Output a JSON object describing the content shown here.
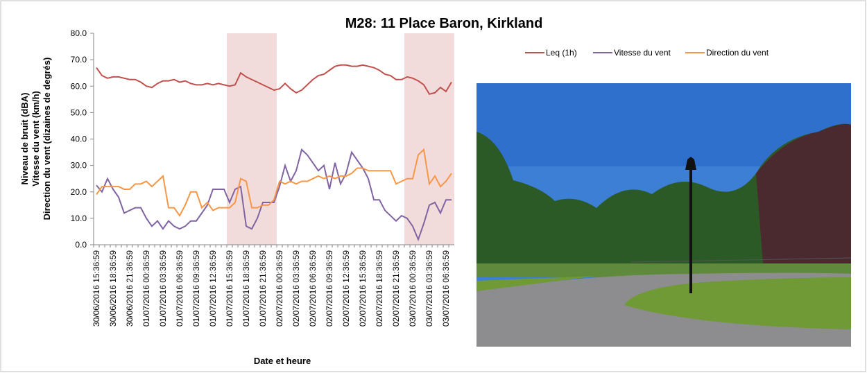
{
  "chart_data": {
    "type": "line",
    "title": "M28: 11 Place Baron, Kirkland",
    "xlabel": "Date et heure",
    "ylabel": [
      "Niveau de bruit (dBA)",
      "Vitesse du vent (km/h)",
      "Direction du vent (dizaines de degrés)"
    ],
    "categories": [
      "30/06/2016 15:36:59",
      null,
      null,
      "30/06/2016 18:36:59",
      null,
      null,
      "30/06/2016 21:36:59",
      null,
      null,
      "01/07/2016 00:36:59",
      null,
      null,
      "01/07/2016 03:36:59",
      null,
      null,
      "01/07/2016 06:36:59",
      null,
      null,
      "01/07/2016 09:36:59",
      null,
      null,
      "01/07/2016 12:36:59",
      null,
      null,
      "01/07/2016 15:36:59",
      null,
      null,
      "01/07/2016 18:36:59",
      null,
      null,
      "01/07/2016 21:36:59",
      null,
      null,
      "02/07/2016 00:36:59",
      null,
      null,
      "02/07/2016 03:36:59",
      null,
      null,
      "02/07/2016 06:36:59",
      null,
      null,
      "02/07/2016 09:36:59",
      null,
      null,
      "02/07/2016 12:36:59",
      null,
      null,
      "02/07/2016 15:36:59",
      null,
      null,
      "02/07/2016 18:36:59",
      null,
      null,
      "02/07/2016 21:36:59",
      null,
      null,
      "03/07/2016 00:36:59",
      null,
      null,
      "03/07/2016 03:36:59",
      null,
      null,
      "03/07/2016 06:36:59",
      null
    ],
    "series": [
      {
        "name": "Leq (1h)",
        "color": "#c0504d",
        "values": [
          67,
          64,
          63,
          63.5,
          63.5,
          63,
          62.5,
          62.5,
          61.5,
          60,
          59.5,
          61,
          62,
          62,
          62.5,
          61.5,
          62,
          61,
          60.5,
          60.5,
          61,
          60.5,
          61,
          60.5,
          60,
          60.5,
          65,
          63.5,
          62.5,
          61.5,
          60.5,
          59.5,
          58.5,
          59,
          61,
          59,
          57.5,
          58.5,
          60.5,
          62.5,
          64,
          64.5,
          66,
          67.5,
          68,
          68,
          67.5,
          67.5,
          68,
          67.5,
          67,
          66,
          64.5,
          64,
          62.5,
          62.5,
          63.5,
          63,
          62,
          60.5,
          57,
          57.5,
          59.5,
          58,
          61.5
        ]
      },
      {
        "name": "Vitesse du vent",
        "color": "#8064a2",
        "values": [
          22.5,
          20,
          25,
          21,
          18,
          12,
          13,
          14,
          14,
          10,
          7,
          9,
          6,
          9,
          7,
          6,
          7,
          9,
          9,
          12,
          15,
          21,
          21,
          21,
          16,
          21,
          22,
          7,
          6,
          10,
          16,
          16,
          16,
          22,
          30,
          24,
          28,
          36,
          34,
          31,
          28,
          30,
          21,
          31,
          23,
          27,
          35,
          32,
          29,
          25,
          17,
          17,
          13,
          11,
          9,
          11,
          10,
          7,
          2,
          8,
          15,
          16,
          12,
          17,
          17
        ]
      },
      {
        "name": "Direction du vent",
        "color": "#f79646",
        "values": [
          19,
          22,
          22,
          22,
          22,
          21,
          21,
          23,
          23,
          24,
          22,
          24,
          26,
          14,
          14,
          11,
          15,
          20,
          20,
          14,
          16,
          13,
          14,
          14,
          14,
          16,
          25,
          24,
          14,
          14,
          15,
          15,
          17,
          24,
          23,
          24,
          23,
          24,
          24,
          25,
          26,
          25,
          26,
          25,
          26,
          26,
          27,
          29,
          29,
          28,
          28,
          28,
          28,
          28,
          23,
          24,
          25,
          25,
          34,
          36,
          23,
          26,
          22,
          24,
          27
        ]
      }
    ],
    "shaded_ranges": [
      [
        24,
        32
      ],
      [
        56,
        64
      ]
    ],
    "shade_color": "#f2dcdb",
    "ylim": [
      0,
      80
    ],
    "yticks": [
      {
        "value": 0,
        "label": "0.0"
      },
      {
        "value": 10,
        "label": "10.0"
      },
      {
        "value": 20,
        "label": "20.0"
      },
      {
        "value": 30,
        "label": "30.0"
      },
      {
        "value": 40,
        "label": "40.0"
      },
      {
        "value": 50,
        "label": "50.0"
      },
      {
        "value": 60,
        "label": "60.0"
      },
      {
        "value": 70,
        "label": "70.0"
      },
      {
        "value": 80,
        "label": "80.0"
      }
    ],
    "legend": "top-right"
  }
}
